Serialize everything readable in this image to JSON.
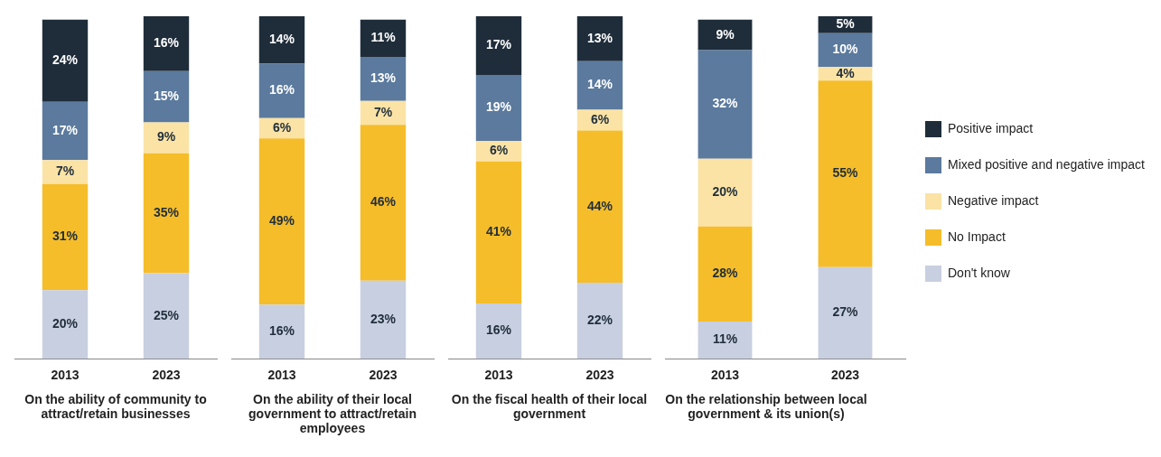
{
  "chart_data": [
    {
      "type": "bar",
      "stacked": true,
      "categories": [
        "2013",
        "2023"
      ],
      "xlabel": "On the ability of community to attract/retain businesses",
      "series": [
        {
          "color": "#c8cfe0",
          "values": [
            20,
            25
          ],
          "value_labels": [
            "20%",
            "25%"
          ]
        },
        {
          "color": "#f5bd2a",
          "values": [
            31,
            35
          ],
          "value_labels": [
            "31%",
            "35%"
          ]
        },
        {
          "color": "#fbe3a6",
          "values": [
            7,
            9
          ],
          "value_labels": [
            "7%",
            "9%"
          ]
        },
        {
          "color": "#5b7a9e",
          "values": [
            17,
            15
          ],
          "value_labels": [
            "17%",
            "15%"
          ]
        },
        {
          "color": "#1f2d3a",
          "values": [
            24,
            16
          ],
          "value_labels": [
            "24%",
            "16%"
          ]
        }
      ]
    },
    {
      "type": "bar",
      "stacked": true,
      "categories": [
        "2013",
        "2023"
      ],
      "xlabel": "On the ability of their local government to attract/retain employees",
      "series": [
        {
          "color": "#c8cfe0",
          "values": [
            16,
            23
          ],
          "value_labels": [
            "16%",
            "23%"
          ]
        },
        {
          "color": "#f5bd2a",
          "values": [
            49,
            46
          ],
          "value_labels": [
            "49%",
            "46%"
          ]
        },
        {
          "color": "#fbe3a6",
          "values": [
            6,
            7
          ],
          "value_labels": [
            "6%",
            "7%"
          ]
        },
        {
          "color": "#5b7a9e",
          "values": [
            16,
            13
          ],
          "value_labels": [
            "16%",
            "13%"
          ]
        },
        {
          "color": "#1f2d3a",
          "values": [
            14,
            11
          ],
          "value_labels": [
            "14%",
            "11%"
          ]
        }
      ]
    },
    {
      "type": "bar",
      "stacked": true,
      "categories": [
        "2013",
        "2023"
      ],
      "xlabel": "On the fiscal health of their local government",
      "series": [
        {
          "color": "#c8cfe0",
          "values": [
            16,
            22
          ],
          "value_labels": [
            "16%",
            "22%"
          ]
        },
        {
          "color": "#f5bd2a",
          "values": [
            41,
            44
          ],
          "value_labels": [
            "41%",
            "44%"
          ]
        },
        {
          "color": "#fbe3a6",
          "values": [
            6,
            6
          ],
          "value_labels": [
            "6%",
            "6%"
          ]
        },
        {
          "color": "#5b7a9e",
          "values": [
            19,
            14
          ],
          "value_labels": [
            "19%",
            "14%"
          ]
        },
        {
          "color": "#1f2d3a",
          "values": [
            17,
            13
          ],
          "value_labels": [
            "17%",
            "13%"
          ]
        }
      ]
    },
    {
      "type": "bar",
      "stacked": true,
      "categories": [
        "2013",
        "2023"
      ],
      "xlabel": "On the relationship between local government & its union(s)",
      "legend": "right",
      "series": [
        {
          "name": "Don't know",
          "color": "#c8cfe0",
          "values": [
            11,
            27
          ],
          "value_labels": [
            "11%",
            "27%"
          ]
        },
        {
          "name": "No Impact",
          "color": "#f5bd2a",
          "values": [
            28,
            55
          ],
          "value_labels": [
            "28%",
            "55%"
          ]
        },
        {
          "name": "Negative impact",
          "color": "#fbe3a6",
          "values": [
            20,
            4
          ],
          "value_labels": [
            "20%",
            "4%"
          ]
        },
        {
          "name": "Mixed positive and negative impact",
          "color": "#5b7a9e",
          "values": [
            32,
            10
          ],
          "value_labels": [
            "32%",
            "10%"
          ]
        },
        {
          "name": "Positive impact",
          "color": "#1f2d3a",
          "values": [
            9,
            5
          ],
          "value_labels": [
            "9%",
            "5%"
          ]
        }
      ]
    }
  ]
}
